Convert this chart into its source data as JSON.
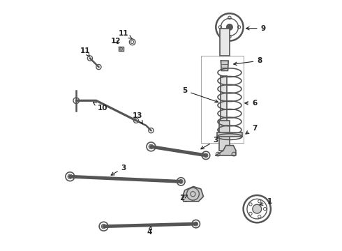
{
  "background_color": "#ffffff",
  "line_color": "#555555",
  "label_color": "#222222",
  "fig_width": 4.9,
  "fig_height": 3.6,
  "dpi": 100
}
